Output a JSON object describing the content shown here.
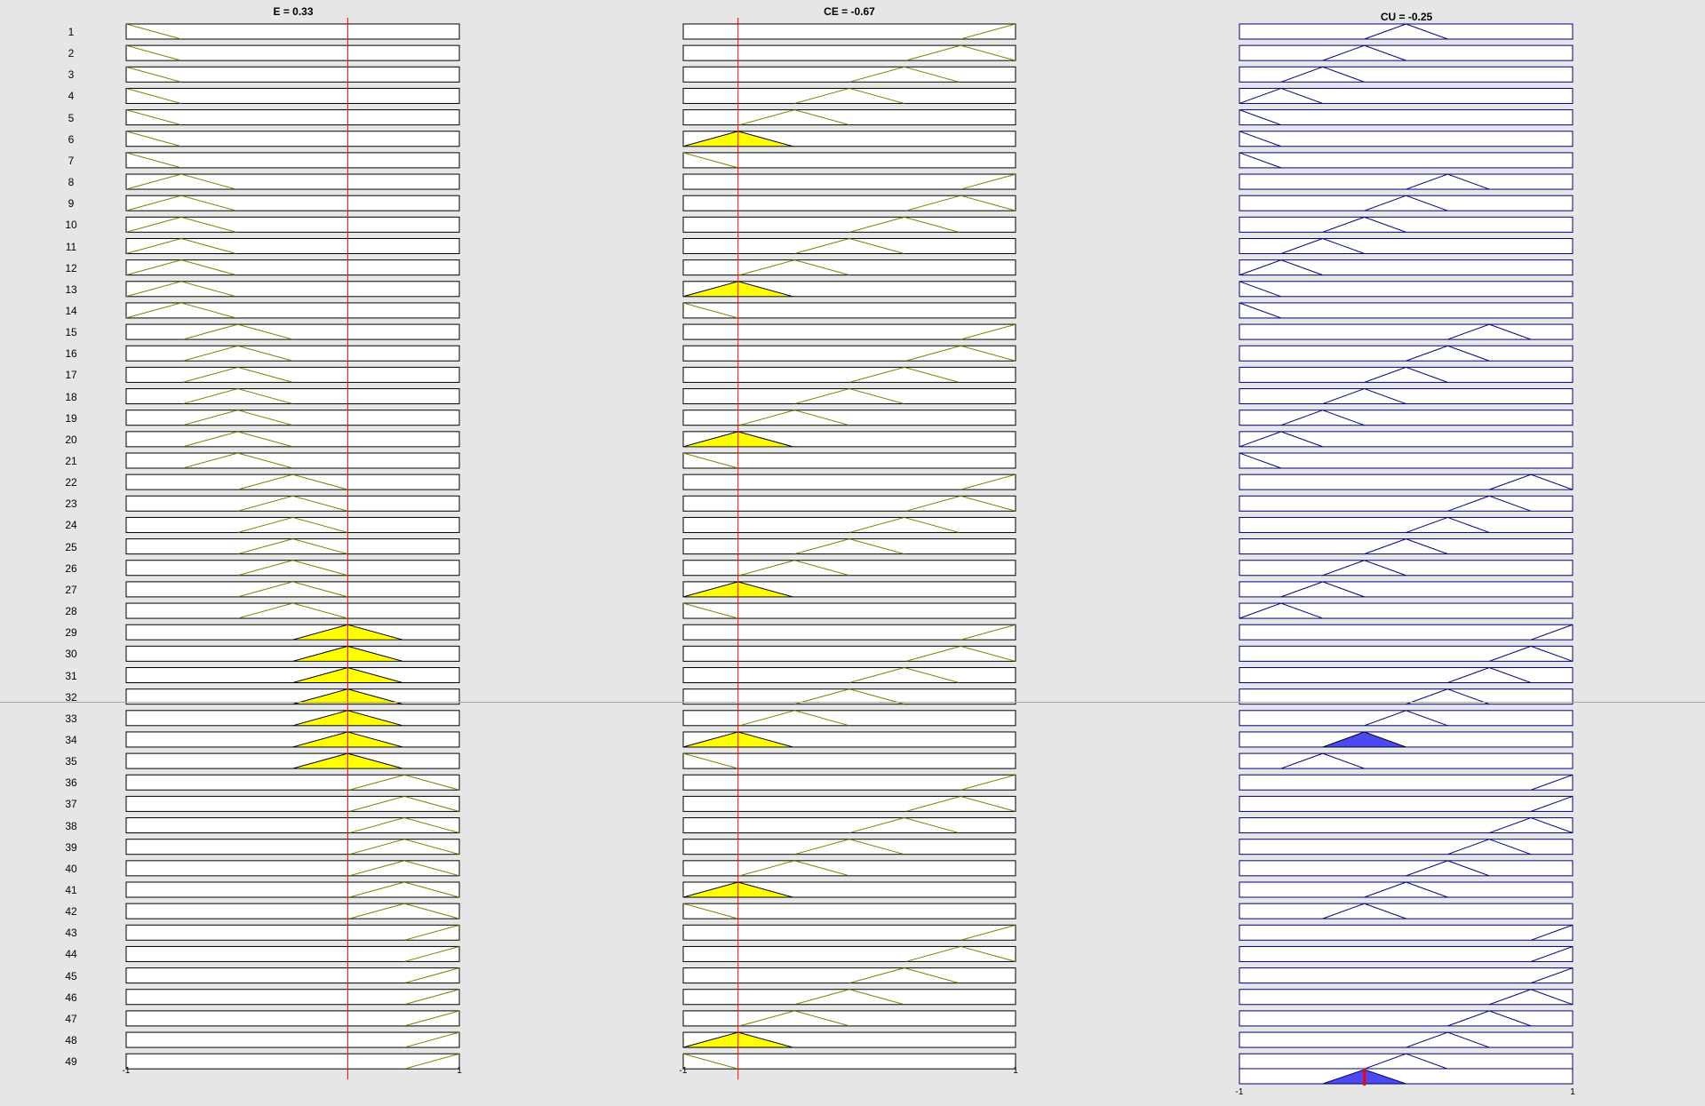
{
  "titles": {
    "input1": "E = 0.33",
    "input2": "CE = -0.67",
    "output": "CU = -0.25"
  },
  "axis_labels": {
    "input1_min": "-1",
    "input1_max": "1",
    "input2_min": "-1",
    "input2_max": "1",
    "output_min": "-1",
    "output_max": "1"
  },
  "values": {
    "e": 0.33,
    "ce": -0.67,
    "cu": -0.25
  },
  "range": [
    -1,
    1
  ],
  "colors": {
    "background": "#e6e6e6",
    "input_mf": "#808000",
    "output_mf": "#000080",
    "input_fill": "#ffff00",
    "output_fill": "#4a4af0",
    "indicator": "#ff0000",
    "box_fill": "#ffffff"
  },
  "rules": {
    "numbers": [
      "1",
      "2",
      "3",
      "4",
      "5",
      "6",
      "7",
      "8",
      "9",
      "10",
      "11",
      "12",
      "13",
      "14",
      "15",
      "16",
      "17",
      "18",
      "19",
      "20",
      "21",
      "22",
      "23",
      "24",
      "25",
      "26",
      "27",
      "28",
      "29",
      "30",
      "31",
      "32",
      "33",
      "34",
      "35",
      "36",
      "37",
      "38",
      "39",
      "40",
      "41",
      "42",
      "43",
      "44",
      "45",
      "46",
      "47",
      "48",
      "49"
    ],
    "e_center": [
      -1,
      -1,
      -1,
      -1,
      -1,
      -1,
      -1,
      -0.67,
      -0.67,
      -0.67,
      -0.67,
      -0.67,
      -0.67,
      -0.67,
      -0.33,
      -0.33,
      -0.33,
      -0.33,
      -0.33,
      -0.33,
      -0.33,
      0,
      0,
      0,
      0,
      0,
      0,
      0,
      0.33,
      0.33,
      0.33,
      0.33,
      0.33,
      0.33,
      0.33,
      0.67,
      0.67,
      0.67,
      0.67,
      0.67,
      0.67,
      0.67,
      1,
      1,
      1,
      1,
      1,
      1,
      1
    ],
    "ce_center": [
      1,
      0.67,
      0.33,
      0,
      -0.33,
      -0.67,
      -1,
      1,
      0.67,
      0.33,
      0,
      -0.33,
      -0.67,
      -1,
      1,
      0.67,
      0.33,
      0,
      -0.33,
      -0.67,
      -1,
      1,
      0.67,
      0.33,
      0,
      -0.33,
      -0.67,
      -1,
      1,
      0.67,
      0.33,
      0,
      -0.33,
      -0.67,
      -1,
      1,
      0.67,
      0.33,
      0,
      -0.33,
      -0.67,
      -1,
      1,
      0.67,
      0.33,
      0,
      -0.33,
      -0.67,
      -1
    ],
    "cu_center": [
      0,
      -0.25,
      -0.5,
      -0.75,
      -1,
      -1,
      -1,
      0.25,
      0,
      -0.25,
      -0.5,
      -0.75,
      -1,
      -1,
      0.5,
      0.25,
      0,
      -0.25,
      -0.5,
      -0.75,
      -1,
      0.75,
      0.5,
      0.25,
      0,
      -0.25,
      -0.5,
      -0.75,
      1,
      0.75,
      0.5,
      0.25,
      0,
      -0.25,
      -0.5,
      1,
      1,
      0.75,
      0.5,
      0.25,
      0,
      -0.25,
      1,
      1,
      1,
      0.75,
      0.5,
      0.25,
      0
    ],
    "e_active": [
      0,
      0,
      0,
      0,
      0,
      0,
      0,
      0,
      0,
      0,
      0,
      0,
      0,
      0,
      0,
      0,
      0,
      0,
      0,
      0,
      0,
      0,
      0,
      0,
      0,
      0,
      0,
      0,
      1,
      1,
      1,
      1,
      1,
      1,
      1,
      0,
      0,
      0,
      0,
      0,
      0,
      0,
      0,
      0,
      0,
      0,
      0,
      0,
      0
    ],
    "ce_active": [
      0,
      0,
      0,
      0,
      0,
      1,
      0,
      0,
      0,
      0,
      0,
      0,
      1,
      0,
      0,
      0,
      0,
      0,
      0,
      1,
      0,
      0,
      0,
      0,
      0,
      0,
      1,
      0,
      0,
      0,
      0,
      0,
      0,
      1,
      0,
      0,
      0,
      0,
      0,
      0,
      1,
      0,
      0,
      0,
      0,
      0,
      0,
      1,
      0
    ],
    "cu_active": [
      0,
      0,
      0,
      0,
      0,
      0,
      0,
      0,
      0,
      0,
      0,
      0,
      0,
      0,
      0,
      0,
      0,
      0,
      0,
      0,
      0,
      0,
      0,
      0,
      0,
      0,
      0,
      0,
      0,
      0,
      0,
      0,
      0,
      1,
      0,
      0,
      0,
      0,
      0,
      0,
      0,
      0,
      0,
      0,
      0,
      0,
      0,
      0,
      0
    ]
  },
  "aggregate_output": {
    "center": -0.25,
    "active": true
  }
}
